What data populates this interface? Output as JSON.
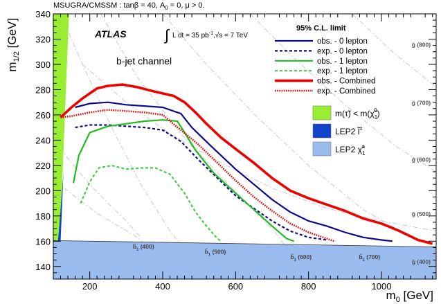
{
  "chart_data": {
    "type": "line",
    "header": "MSUGRA/CMSSM : tanβ = 40, A",
    "header_sub": "0",
    "header_tail": " = 0, μ > 0.",
    "experiment": "ATLAS",
    "lumi_prefix": "L dt = 35 pb",
    "lumi_exp": "-1",
    "lumi_suffix": ",√s = 7 TeV",
    "lumi_integral": "∫",
    "channel": "b-jet channel",
    "xlabel_main": "m",
    "xlabel_sub": "0",
    "xlabel_unit": " [GeV]",
    "ylabel_main": "m",
    "ylabel_sub": "1/2",
    "ylabel_unit": " [GeV]",
    "xlim": [
      100,
      1150
    ],
    "ylim": [
      130,
      340
    ],
    "x_ticks": [
      200,
      400,
      600,
      800,
      1000
    ],
    "y_ticks": [
      140,
      160,
      180,
      200,
      220,
      240,
      260,
      280,
      300,
      320,
      340
    ],
    "legend_title": "95% C.L. limit",
    "legend_placement": "top-right",
    "series": [
      {
        "name": "obs. - 0 lepton",
        "color": "#0a0a8c",
        "dash": "solid",
        "width": 2.2,
        "points": [
          [
            160,
            266
          ],
          [
            200,
            269
          ],
          [
            250,
            270
          ],
          [
            300,
            268
          ],
          [
            350,
            267
          ],
          [
            400,
            266
          ],
          [
            450,
            261
          ],
          [
            480,
            250
          ],
          [
            530,
            236
          ],
          [
            600,
            217
          ],
          [
            650,
            205
          ],
          [
            700,
            193
          ],
          [
            750,
            183
          ],
          [
            800,
            176
          ],
          [
            850,
            172
          ],
          [
            900,
            167
          ],
          [
            950,
            163
          ],
          [
            1000,
            161
          ],
          [
            1030,
            160
          ]
        ]
      },
      {
        "name": "exp. - 0 lepton",
        "color": "#0a0a8c",
        "dash": "4,3",
        "width": 2.2,
        "points": [
          [
            160,
            250
          ],
          [
            200,
            252
          ],
          [
            250,
            252
          ],
          [
            300,
            251
          ],
          [
            350,
            250
          ],
          [
            400,
            248
          ],
          [
            450,
            239
          ],
          [
            500,
            224
          ],
          [
            550,
            210
          ],
          [
            600,
            196
          ],
          [
            650,
            186
          ],
          [
            700,
            176
          ],
          [
            750,
            168
          ],
          [
            800,
            163
          ],
          [
            850,
            161
          ]
        ]
      },
      {
        "name": "obs. - 1 lepton",
        "color": "#22bb22",
        "dash": "solid",
        "width": 2.2,
        "points": [
          [
            155,
            206
          ],
          [
            170,
            228
          ],
          [
            200,
            246
          ],
          [
            250,
            251
          ],
          [
            300,
            253
          ],
          [
            350,
            255
          ],
          [
            400,
            256
          ],
          [
            440,
            255
          ],
          [
            460,
            246
          ],
          [
            490,
            232
          ],
          [
            540,
            214
          ],
          [
            600,
            198
          ],
          [
            650,
            185
          ],
          [
            700,
            172
          ],
          [
            740,
            162
          ],
          [
            760,
            160
          ]
        ]
      },
      {
        "name": "exp. - 1 lepton",
        "color": "#44cc44",
        "dash": "4,3",
        "width": 2.2,
        "points": [
          [
            175,
            190
          ],
          [
            200,
            207
          ],
          [
            225,
            218
          ],
          [
            260,
            220
          ],
          [
            300,
            217
          ],
          [
            340,
            218
          ],
          [
            380,
            218
          ],
          [
            420,
            213
          ],
          [
            460,
            198
          ],
          [
            490,
            183
          ],
          [
            520,
            172
          ],
          [
            550,
            162
          ],
          [
            560,
            160
          ]
        ]
      },
      {
        "name": "obs. - Combined",
        "color": "#ee0000",
        "dash": "solid",
        "width": 3.6,
        "points": [
          [
            120,
            258
          ],
          [
            150,
            266
          ],
          [
            180,
            273
          ],
          [
            220,
            281
          ],
          [
            250,
            283
          ],
          [
            290,
            284
          ],
          [
            330,
            282
          ],
          [
            370,
            279
          ],
          [
            400,
            277
          ],
          [
            430,
            275
          ],
          [
            460,
            270
          ],
          [
            490,
            262
          ],
          [
            520,
            253
          ],
          [
            560,
            242
          ],
          [
            600,
            233
          ],
          [
            650,
            222
          ],
          [
            700,
            210
          ],
          [
            750,
            200
          ],
          [
            800,
            194
          ],
          [
            850,
            189
          ],
          [
            900,
            184
          ],
          [
            950,
            178
          ],
          [
            1000,
            174
          ],
          [
            1050,
            168
          ],
          [
            1100,
            161
          ],
          [
            1140,
            158
          ]
        ]
      },
      {
        "name": "exp. - Combined",
        "color": "#ee0000",
        "dash": "1.6,1.6",
        "width": 2.6,
        "points": [
          [
            120,
            258
          ],
          [
            150,
            259
          ],
          [
            200,
            262
          ],
          [
            250,
            264
          ],
          [
            300,
            263
          ],
          [
            350,
            262
          ],
          [
            400,
            260
          ],
          [
            450,
            248
          ],
          [
            500,
            236
          ],
          [
            550,
            222
          ],
          [
            600,
            208
          ],
          [
            650,
            195
          ],
          [
            700,
            184
          ],
          [
            750,
            174
          ],
          [
            800,
            167
          ],
          [
            850,
            162
          ],
          [
            870,
            160
          ]
        ]
      }
    ],
    "regions": [
      {
        "name": "m(τ̃) < m(χ̃",
        "sub": "1",
        "sup": "0",
        "tail": ")",
        "color": "#99ee33"
      },
      {
        "name": "LEP2 l̃",
        "sup": "±",
        "color": "#1144cc"
      },
      {
        "name": "LEP2 χ̃",
        "sub": "1",
        "sup": "±",
        "color": "#99bbee"
      }
    ],
    "gluino_labels": [
      {
        "text": "g̃ (800)",
        "at": [
          1135,
          314
        ]
      },
      {
        "text": "g̃ (700)",
        "at": [
          1135,
          268
        ]
      },
      {
        "text": "g̃ (600)",
        "at": [
          1135,
          223
        ]
      },
      {
        "text": "g̃ (500)",
        "at": [
          1135,
          180
        ]
      },
      {
        "text": "g̃ (400)",
        "at": [
          1135,
          142
        ]
      }
    ],
    "sbottom_labels": [
      {
        "text": "b̃",
        "sub": "1",
        "tail": " (400)",
        "at": [
          318,
          154
        ]
      },
      {
        "text": "b̃",
        "sub": "1",
        "tail": " (500)",
        "at": [
          515,
          150
        ]
      },
      {
        "text": "b̃",
        "sub": "1",
        "tail": " (600)",
        "at": [
          750,
          146
        ]
      },
      {
        "text": "b̃",
        "sub": "1",
        "tail": " (700)",
        "at": [
          938,
          146
        ]
      }
    ]
  }
}
